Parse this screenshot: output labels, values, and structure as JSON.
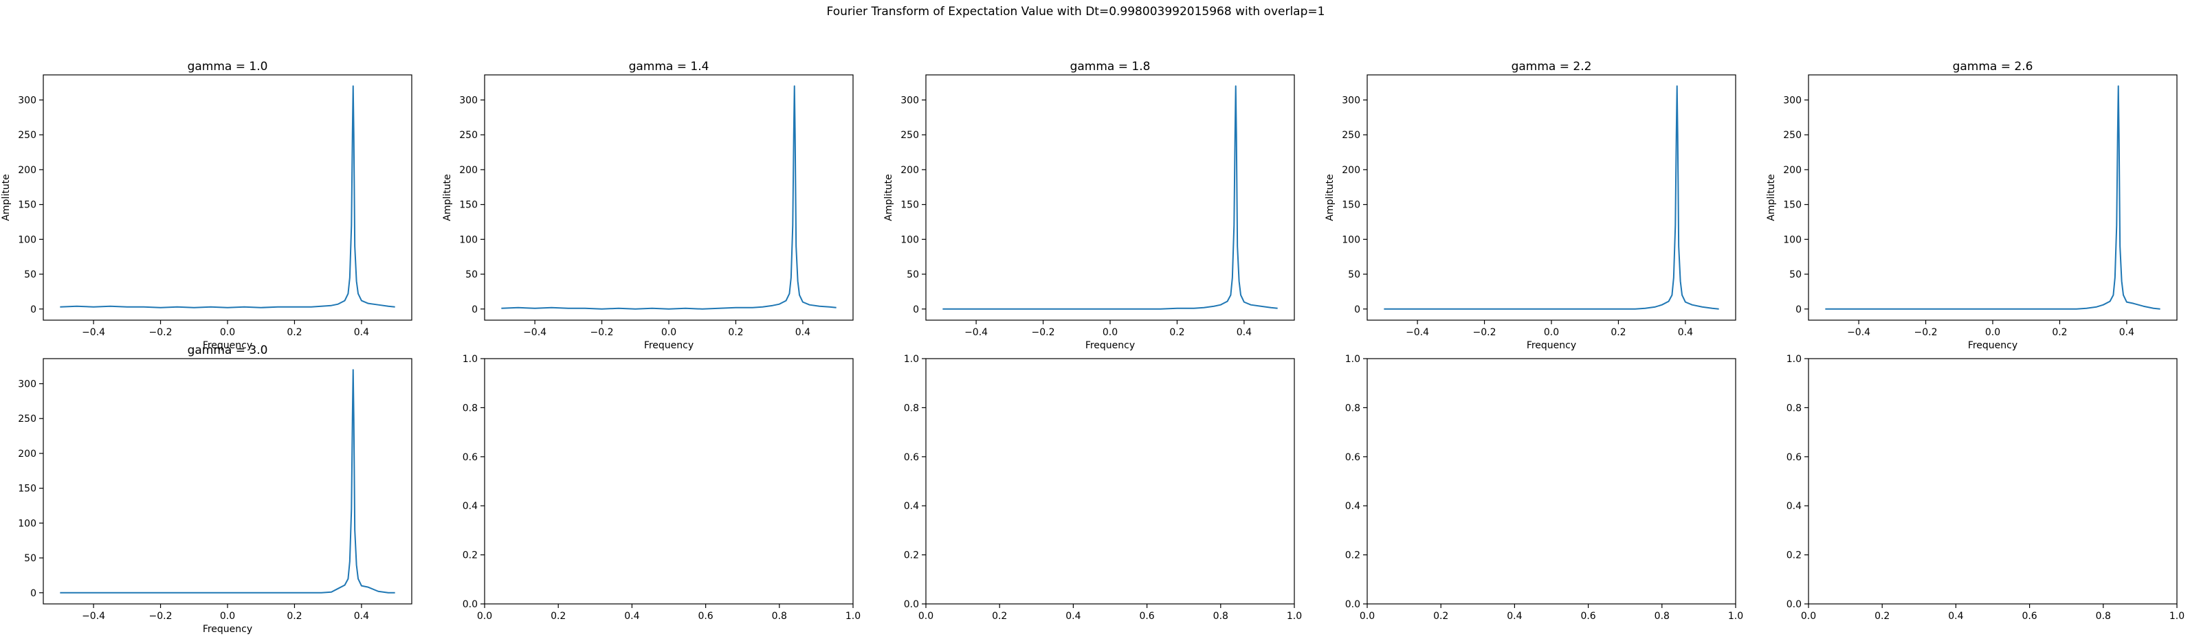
{
  "figure": {
    "suptitle": "Fourier Transform of Expectation Value with Dt=0.998003992015968 with overlap=1"
  },
  "colors": {
    "series": "#1f77b4",
    "axis": "#000000",
    "background": "#ffffff"
  },
  "chart_data": [
    {
      "type": "line",
      "title": "gamma = 1.0",
      "xlabel": "Frequency",
      "ylabel": "Amplitute",
      "xlim": [
        -0.55,
        0.55
      ],
      "ylim": [
        -16,
        336
      ],
      "xticks": [
        -0.4,
        -0.2,
        0.0,
        0.2,
        0.4
      ],
      "xtick_labels": [
        "−0.4",
        "−0.2",
        "0.0",
        "0.2",
        "0.4"
      ],
      "yticks": [
        0,
        50,
        100,
        150,
        200,
        250,
        300
      ],
      "ytick_labels": [
        "0",
        "50",
        "100",
        "150",
        "200",
        "250",
        "300"
      ],
      "grid": false,
      "series": [
        {
          "x": [
            -0.5,
            -0.45,
            -0.4,
            -0.35,
            -0.3,
            -0.25,
            -0.2,
            -0.15,
            -0.1,
            -0.05,
            0.0,
            0.05,
            0.1,
            0.15,
            0.2,
            0.25,
            0.28,
            0.31,
            0.33,
            0.35,
            0.36,
            0.365,
            0.37,
            0.373,
            0.375,
            0.377,
            0.38,
            0.385,
            0.39,
            0.4,
            0.42,
            0.45,
            0.48,
            0.5
          ],
          "y": [
            3,
            4,
            3,
            4,
            3,
            3,
            2,
            3,
            2,
            3,
            2,
            3,
            2,
            3,
            3,
            3,
            4,
            5,
            7,
            12,
            22,
            45,
            120,
            250,
            320,
            250,
            90,
            40,
            22,
            12,
            8,
            6,
            4,
            3
          ]
        }
      ]
    },
    {
      "type": "line",
      "title": "gamma = 1.4",
      "xlabel": "Frequency",
      "ylabel": "Amplitute",
      "xlim": [
        -0.55,
        0.55
      ],
      "ylim": [
        -16,
        336
      ],
      "xticks": [
        -0.4,
        -0.2,
        0.0,
        0.2,
        0.4
      ],
      "xtick_labels": [
        "−0.4",
        "−0.2",
        "0.0",
        "0.2",
        "0.4"
      ],
      "yticks": [
        0,
        50,
        100,
        150,
        200,
        250,
        300
      ],
      "ytick_labels": [
        "0",
        "50",
        "100",
        "150",
        "200",
        "250",
        "300"
      ],
      "grid": false,
      "series": [
        {
          "x": [
            -0.5,
            -0.45,
            -0.4,
            -0.35,
            -0.3,
            -0.25,
            -0.2,
            -0.15,
            -0.1,
            -0.05,
            0.0,
            0.05,
            0.1,
            0.15,
            0.2,
            0.25,
            0.28,
            0.31,
            0.33,
            0.35,
            0.36,
            0.365,
            0.37,
            0.373,
            0.375,
            0.377,
            0.38,
            0.385,
            0.39,
            0.4,
            0.42,
            0.45,
            0.48,
            0.5
          ],
          "y": [
            1,
            2,
            1,
            2,
            1,
            1,
            0,
            1,
            0,
            1,
            0,
            1,
            0,
            1,
            2,
            2,
            3,
            5,
            7,
            12,
            22,
            45,
            120,
            250,
            320,
            250,
            90,
            40,
            20,
            10,
            6,
            4,
            3,
            2
          ]
        }
      ]
    },
    {
      "type": "line",
      "title": "gamma = 1.8",
      "xlabel": "Frequency",
      "ylabel": "Amplitute",
      "xlim": [
        -0.55,
        0.55
      ],
      "ylim": [
        -16,
        336
      ],
      "xticks": [
        -0.4,
        -0.2,
        0.0,
        0.2,
        0.4
      ],
      "xtick_labels": [
        "−0.4",
        "−0.2",
        "0.0",
        "0.2",
        "0.4"
      ],
      "yticks": [
        0,
        50,
        100,
        150,
        200,
        250,
        300
      ],
      "ytick_labels": [
        "0",
        "50",
        "100",
        "150",
        "200",
        "250",
        "300"
      ],
      "grid": false,
      "series": [
        {
          "x": [
            -0.5,
            -0.45,
            -0.4,
            -0.35,
            -0.3,
            -0.25,
            -0.2,
            -0.15,
            -0.1,
            -0.05,
            0.0,
            0.05,
            0.1,
            0.15,
            0.2,
            0.25,
            0.28,
            0.31,
            0.33,
            0.35,
            0.36,
            0.365,
            0.37,
            0.373,
            0.375,
            0.377,
            0.38,
            0.385,
            0.39,
            0.4,
            0.42,
            0.45,
            0.48,
            0.5
          ],
          "y": [
            0,
            0,
            0,
            0,
            0,
            0,
            0,
            0,
            0,
            0,
            0,
            0,
            0,
            0,
            1,
            1,
            2,
            4,
            6,
            11,
            20,
            45,
            120,
            250,
            320,
            250,
            90,
            40,
            20,
            10,
            6,
            4,
            2,
            1
          ]
        }
      ]
    },
    {
      "type": "line",
      "title": "gamma = 2.2",
      "xlabel": "Frequency",
      "ylabel": "Amplitute",
      "xlim": [
        -0.55,
        0.55
      ],
      "ylim": [
        -16,
        336
      ],
      "xticks": [
        -0.4,
        -0.2,
        0.0,
        0.2,
        0.4
      ],
      "xtick_labels": [
        "−0.4",
        "−0.2",
        "0.0",
        "0.2",
        "0.4"
      ],
      "yticks": [
        0,
        50,
        100,
        150,
        200,
        250,
        300
      ],
      "ytick_labels": [
        "0",
        "50",
        "100",
        "150",
        "200",
        "250",
        "300"
      ],
      "grid": false,
      "series": [
        {
          "x": [
            -0.5,
            -0.45,
            -0.4,
            -0.35,
            -0.3,
            -0.25,
            -0.2,
            -0.15,
            -0.1,
            -0.05,
            0.0,
            0.05,
            0.1,
            0.15,
            0.2,
            0.25,
            0.28,
            0.31,
            0.33,
            0.35,
            0.36,
            0.365,
            0.37,
            0.373,
            0.375,
            0.377,
            0.38,
            0.385,
            0.39,
            0.4,
            0.42,
            0.45,
            0.48,
            0.5
          ],
          "y": [
            0,
            0,
            0,
            0,
            0,
            0,
            0,
            0,
            0,
            0,
            0,
            0,
            0,
            0,
            0,
            0,
            1,
            3,
            6,
            11,
            20,
            45,
            120,
            250,
            320,
            250,
            90,
            40,
            20,
            10,
            6,
            3,
            1,
            0
          ]
        }
      ]
    },
    {
      "type": "line",
      "title": "gamma = 2.6",
      "xlabel": "Frequency",
      "ylabel": "Amplitute",
      "xlim": [
        -0.55,
        0.55
      ],
      "ylim": [
        -16,
        336
      ],
      "xticks": [
        -0.4,
        -0.2,
        0.0,
        0.2,
        0.4
      ],
      "xtick_labels": [
        "−0.4",
        "−0.2",
        "0.0",
        "0.2",
        "0.4"
      ],
      "yticks": [
        0,
        50,
        100,
        150,
        200,
        250,
        300
      ],
      "ytick_labels": [
        "0",
        "50",
        "100",
        "150",
        "200",
        "250",
        "300"
      ],
      "grid": false,
      "series": [
        {
          "x": [
            -0.5,
            -0.45,
            -0.4,
            -0.35,
            -0.3,
            -0.25,
            -0.2,
            -0.15,
            -0.1,
            -0.05,
            0.0,
            0.05,
            0.1,
            0.15,
            0.2,
            0.25,
            0.28,
            0.31,
            0.33,
            0.35,
            0.36,
            0.365,
            0.37,
            0.373,
            0.375,
            0.377,
            0.38,
            0.385,
            0.39,
            0.4,
            0.42,
            0.45,
            0.48,
            0.5
          ],
          "y": [
            0,
            0,
            0,
            0,
            0,
            0,
            0,
            0,
            0,
            0,
            0,
            0,
            0,
            0,
            0,
            0,
            1,
            3,
            6,
            11,
            20,
            45,
            120,
            250,
            320,
            250,
            90,
            40,
            20,
            10,
            8,
            4,
            1,
            0
          ]
        }
      ]
    },
    {
      "type": "line",
      "title": "gamma = 3.0",
      "xlabel": "Frequency",
      "ylabel": "",
      "xlim": [
        -0.55,
        0.55
      ],
      "ylim": [
        -16,
        336
      ],
      "xticks": [
        -0.4,
        -0.2,
        0.0,
        0.2,
        0.4
      ],
      "xtick_labels": [
        "−0.4",
        "−0.2",
        "0.0",
        "0.2",
        "0.4"
      ],
      "yticks": [
        0,
        50,
        100,
        150,
        200,
        250,
        300
      ],
      "ytick_labels": [
        "0",
        "50",
        "100",
        "150",
        "200",
        "250",
        "300"
      ],
      "grid": false,
      "series": [
        {
          "x": [
            -0.5,
            -0.45,
            -0.4,
            -0.35,
            -0.3,
            -0.25,
            -0.2,
            -0.15,
            -0.1,
            -0.05,
            0.0,
            0.05,
            0.1,
            0.15,
            0.2,
            0.25,
            0.28,
            0.31,
            0.33,
            0.35,
            0.36,
            0.365,
            0.37,
            0.373,
            0.375,
            0.377,
            0.38,
            0.385,
            0.39,
            0.4,
            0.42,
            0.45,
            0.48,
            0.5
          ],
          "y": [
            0,
            0,
            0,
            0,
            0,
            0,
            0,
            0,
            0,
            0,
            0,
            0,
            0,
            0,
            0,
            0,
            0,
            1,
            6,
            11,
            20,
            45,
            120,
            250,
            320,
            250,
            90,
            40,
            20,
            10,
            8,
            2,
            0,
            0
          ]
        }
      ]
    },
    {
      "type": "line",
      "title": "",
      "xlabel": "",
      "ylabel": "",
      "xlim": [
        0,
        1
      ],
      "ylim": [
        0,
        1
      ],
      "xticks": [
        0,
        0.2,
        0.4,
        0.6,
        0.8,
        1.0
      ],
      "xtick_labels": [
        "0.0",
        "0.2",
        "0.4",
        "0.6",
        "0.8",
        "1.0"
      ],
      "yticks": [
        0,
        0.2,
        0.4,
        0.6,
        0.8,
        1.0
      ],
      "ytick_labels": [
        "0.0",
        "0.2",
        "0.4",
        "0.6",
        "0.8",
        "1.0"
      ],
      "grid": false,
      "series": []
    },
    {
      "type": "line",
      "title": "",
      "xlabel": "",
      "ylabel": "",
      "xlim": [
        0,
        1
      ],
      "ylim": [
        0,
        1
      ],
      "xticks": [
        0,
        0.2,
        0.4,
        0.6,
        0.8,
        1.0
      ],
      "xtick_labels": [
        "0.0",
        "0.2",
        "0.4",
        "0.6",
        "0.8",
        "1.0"
      ],
      "yticks": [
        0,
        0.2,
        0.4,
        0.6,
        0.8,
        1.0
      ],
      "ytick_labels": [
        "0.0",
        "0.2",
        "0.4",
        "0.6",
        "0.8",
        "1.0"
      ],
      "grid": false,
      "series": []
    },
    {
      "type": "line",
      "title": "",
      "xlabel": "",
      "ylabel": "",
      "xlim": [
        0,
        1
      ],
      "ylim": [
        0,
        1
      ],
      "xticks": [
        0,
        0.2,
        0.4,
        0.6,
        0.8,
        1.0
      ],
      "xtick_labels": [
        "0.0",
        "0.2",
        "0.4",
        "0.6",
        "0.8",
        "1.0"
      ],
      "yticks": [
        0,
        0.2,
        0.4,
        0.6,
        0.8,
        1.0
      ],
      "ytick_labels": [
        "0.0",
        "0.2",
        "0.4",
        "0.6",
        "0.8",
        "1.0"
      ],
      "grid": false,
      "series": []
    },
    {
      "type": "line",
      "title": "",
      "xlabel": "",
      "ylabel": "",
      "xlim": [
        0,
        1
      ],
      "ylim": [
        0,
        1
      ],
      "xticks": [
        0,
        0.2,
        0.4,
        0.6,
        0.8,
        1.0
      ],
      "xtick_labels": [
        "0.0",
        "0.2",
        "0.4",
        "0.6",
        "0.8",
        "1.0"
      ],
      "yticks": [
        0,
        0.2,
        0.4,
        0.6,
        0.8,
        1.0
      ],
      "ytick_labels": [
        "0.0",
        "0.2",
        "0.4",
        "0.6",
        "0.8",
        "1.0"
      ],
      "grid": false,
      "series": []
    }
  ]
}
